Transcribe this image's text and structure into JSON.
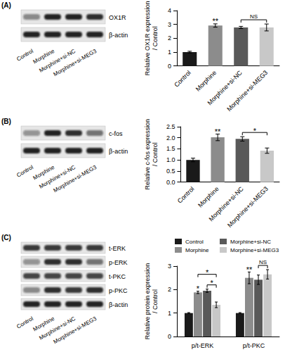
{
  "chart_data": [
    {
      "type": "bar",
      "panel": "(A)",
      "blot": {
        "rows": [
          "OX1R",
          "β-actin"
        ],
        "lanes": [
          "Control",
          "Morphine",
          "Morphine+si-NC",
          "Morphine+si-MEG3"
        ]
      },
      "categories": [
        "Control",
        "Morphine",
        "Morphine+si-NC",
        "Morphine+si-MEG3"
      ],
      "values": [
        1.0,
        2.92,
        2.78,
        2.78
      ],
      "errors": [
        0.06,
        0.12,
        0.08,
        0.25
      ],
      "colors": [
        "#1a1a1a",
        "#8c8c8c",
        "#595959",
        "#c8c8c8"
      ],
      "y_label": "Relative OX1R expression / Control",
      "ylim": [
        0,
        4
      ],
      "yticks": [
        0,
        1,
        2,
        3,
        4
      ],
      "grid": false,
      "annotations": [
        {
          "text": "**",
          "category": 1
        },
        {
          "text": "NS",
          "from": 2,
          "to": 3
        }
      ]
    },
    {
      "type": "bar",
      "panel": "(B)",
      "blot": {
        "rows": [
          "c-fos",
          "β-actin"
        ],
        "lanes": [
          "Control",
          "Morphine",
          "Morphine+si-NC",
          "Morphine+si-MEG3"
        ]
      },
      "categories": [
        "Control",
        "Morphine",
        "Morphine+si-NC",
        "Morphine+si-MEG3"
      ],
      "values": [
        1.0,
        2.02,
        1.95,
        1.42
      ],
      "errors": [
        0.08,
        0.15,
        0.1,
        0.12
      ],
      "colors": [
        "#1a1a1a",
        "#8c8c8c",
        "#595959",
        "#c8c8c8"
      ],
      "y_label": "Relative c-fos expression / Control",
      "ylim": [
        0,
        2.5
      ],
      "yticks": [
        {
          "value": 0,
          "label": "0.0"
        },
        0.5,
        {
          "value": 1,
          "label": "1.0"
        },
        1.5,
        {
          "value": 2,
          "label": "2.0"
        },
        2.5
      ],
      "grid": false,
      "annotations": [
        {
          "text": "**",
          "category": 1
        },
        {
          "text": "*",
          "from": 2,
          "to": 3
        }
      ]
    },
    {
      "type": "bar",
      "panel": "(C)",
      "blot": {
        "rows": [
          "t-ERK",
          "p-ERK",
          "t-PKC",
          "p-PKC",
          "β-actin"
        ],
        "lanes": [
          "Control",
          "Morphine",
          "Morphine+si-NC",
          "Morphine+si-MEG3"
        ]
      },
      "categories": [
        "p/t-ERK",
        "p/t-PKC"
      ],
      "series": [
        {
          "name": "Control",
          "color": "#1a1a1a",
          "values": [
            1.0,
            1.0
          ],
          "errors": [
            0.02,
            0.02
          ]
        },
        {
          "name": "Morphine",
          "color": "#8c8c8c",
          "values": [
            1.88,
            2.5
          ],
          "errors": [
            0.05,
            0.25
          ]
        },
        {
          "name": "Morphine+si-NC",
          "color": "#595959",
          "values": [
            1.95,
            2.42
          ],
          "errors": [
            0.07,
            0.2
          ]
        },
        {
          "name": "Morphine+si-MEG3",
          "color": "#c8c8c8",
          "values": [
            1.35,
            2.65
          ],
          "errors": [
            0.12,
            0.2
          ]
        }
      ],
      "y_label": "Relative protein expression / Control",
      "ylim": [
        0,
        3
      ],
      "yticks": [
        0,
        1,
        2,
        3
      ],
      "grid": false,
      "legend": "top",
      "annotations": [
        {
          "text": "*",
          "category": 0,
          "series": 1
        },
        {
          "text": "*",
          "category": 0,
          "from": 2,
          "to": 3
        },
        {
          "text": "*",
          "category": 0,
          "from": 1,
          "to": 3
        },
        {
          "text": "**",
          "category": 1,
          "series": 1
        },
        {
          "text": "NS",
          "category": 1,
          "from": 2,
          "to": 3
        }
      ]
    }
  ]
}
